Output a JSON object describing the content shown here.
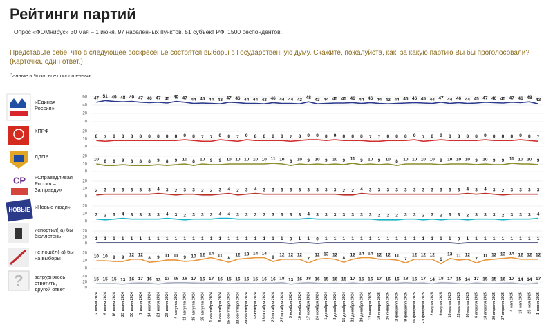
{
  "title": "Рейтинги партий",
  "subtitle": "Опрос «ФОМнибус» 30 мая – 1 июня. 97 населённых пунктов. 51 субъект РФ. 1500 респондентов.",
  "question": "Представьте себе, что в следующее воскресенье состоятся выборы в Государственную думу. Скажите, пожалуйста, как, за какую партию Вы бы проголосовали? (Карточка, один ответ.)",
  "note": "данные в % от всех опрошенных",
  "chart_data": {
    "type": "line",
    "categories": [
      "2 июня 2024",
      "9 июня 2024",
      "16 июня 2024",
      "23 июня 2024",
      "30 июня 2024",
      "7 июля 2024",
      "14 июля 2024",
      "21 июля 2024",
      "28 июля 2024",
      "4 августа 2024",
      "11 августа 2024",
      "18 августа 2024",
      "25 августа 2024",
      "1 сентября 2024",
      "8 сентября 2024",
      "15 сентября 2024",
      "22 сентября 2024",
      "29 сентября 2024",
      "6 октября 2024",
      "13 октября 2024",
      "20 октября 2024",
      "27 октября 2024",
      "3 ноября 2024",
      "10 ноября 2024",
      "17 ноября 2024",
      "24 ноября 2024",
      "1 декабря 2024",
      "8 декабря 2024",
      "15 декабря 2024",
      "22 декабря 2024",
      "29 декабря 2024",
      "12 января 2025",
      "19 января 2025",
      "26 января 2025",
      "2 февраля 2025",
      "9 февраля 2025",
      "16 февраля 2025",
      "23 февраля 2025",
      "2 марта 2025",
      "9 марта 2025",
      "16 марта 2025",
      "23 марта 2025",
      "30 марта 2025",
      "6 апреля 2025",
      "13 апреля 2025",
      "20 апреля 2025",
      "27 апреля 2025",
      "4 мая 2025",
      "18 мая 2025",
      "25 мая 2025",
      "1 июня 2025"
    ],
    "series": [
      {
        "name": "«Единая\nРоссия»",
        "color": "#2b3a8c",
        "ylim": [
          0,
          60
        ],
        "yticks": [
          0,
          20,
          40,
          60
        ],
        "values": [
          47,
          51,
          49,
          48,
          49,
          47,
          46,
          47,
          45,
          49,
          47,
          44,
          45,
          44,
          43,
          47,
          46,
          44,
          44,
          43,
          46,
          44,
          44,
          43,
          48,
          43,
          44,
          45,
          45,
          46,
          44,
          46,
          44,
          43,
          44,
          45,
          46,
          45,
          44,
          47,
          44,
          46,
          44,
          45,
          47,
          46,
          45,
          47,
          46,
          48,
          43
        ]
      },
      {
        "name": "КПРФ",
        "color": "#d32f2f",
        "ylim": [
          0,
          20
        ],
        "yticks": [
          0,
          10,
          20
        ],
        "values": [
          8,
          7,
          8,
          8,
          8,
          8,
          8,
          8,
          8,
          8,
          9,
          8,
          7,
          7,
          9,
          8,
          7,
          9,
          8,
          8,
          8,
          8,
          7,
          8,
          9,
          9,
          8,
          9,
          8,
          8,
          8,
          7,
          7,
          8,
          8,
          8,
          9,
          7,
          8,
          9,
          8,
          8,
          8,
          8,
          9,
          8,
          8,
          8,
          9,
          8,
          7
        ]
      },
      {
        "name": "ЛДПР",
        "color": "#8b8c2a",
        "ylim": [
          0,
          20
        ],
        "yticks": [
          0,
          10,
          20
        ],
        "values": [
          10,
          8,
          8,
          9,
          8,
          8,
          8,
          9,
          8,
          9,
          10,
          8,
          10,
          9,
          9,
          10,
          10,
          10,
          10,
          10,
          11,
          10,
          8,
          10,
          9,
          10,
          9,
          10,
          9,
          11,
          9,
          10,
          9,
          10,
          8,
          10,
          10,
          10,
          10,
          9,
          10,
          10,
          10,
          9,
          10,
          9,
          9,
          11,
          10,
          10,
          9
        ]
      },
      {
        "name": "«Справедливая\nРоссия –\nЗа правду»",
        "color": "#b8322a",
        "ylim": [
          0,
          20
        ],
        "yticks": [
          0,
          10,
          20
        ],
        "values": [
          2,
          3,
          3,
          3,
          3,
          3,
          3,
          4,
          3,
          2,
          3,
          3,
          2,
          2,
          3,
          4,
          2,
          3,
          4,
          3,
          3,
          3,
          3,
          3,
          3,
          3,
          3,
          3,
          2,
          2,
          4,
          3,
          3,
          3,
          3,
          3,
          3,
          3,
          3,
          3,
          3,
          3,
          4,
          3,
          4,
          3,
          2,
          3,
          3,
          3,
          3
        ]
      },
      {
        "name": "«Новые люди»",
        "color": "#19b3c6",
        "ylim": [
          0,
          20
        ],
        "yticks": [
          0,
          10,
          20
        ],
        "values": [
          3,
          2,
          3,
          4,
          3,
          3,
          3,
          3,
          4,
          3,
          2,
          3,
          3,
          3,
          4,
          4,
          3,
          3,
          3,
          3,
          3,
          3,
          3,
          3,
          4,
          3,
          3,
          3,
          3,
          3,
          3,
          3,
          2,
          2,
          2,
          3,
          3,
          2,
          3,
          2,
          3,
          3,
          2,
          3,
          3,
          3,
          2,
          3,
          3,
          3,
          4
        ]
      },
      {
        "name": "испортил(-а) бы\nбюллетень",
        "color": "#2d3466",
        "ylim": [
          0,
          20
        ],
        "yticks": [
          0,
          10,
          20
        ],
        "values": [
          1,
          1,
          1,
          1,
          1,
          1,
          1,
          1,
          1,
          1,
          1,
          1,
          1,
          1,
          1,
          1,
          1,
          1,
          1,
          1,
          1,
          1,
          0,
          1,
          1,
          0,
          1,
          1,
          1,
          1,
          1,
          1,
          1,
          1,
          1,
          1,
          1,
          1,
          1,
          1,
          1,
          0,
          1,
          1,
          1,
          1,
          1,
          1,
          1,
          1,
          1
        ]
      },
      {
        "name": "не пошёл(-а) бы\nна выборы",
        "color": "#e8963a",
        "ylim": [
          0,
          20
        ],
        "yticks": [
          0,
          10,
          20
        ],
        "values": [
          10,
          10,
          9,
          9,
          12,
          12,
          8,
          9,
          11,
          11,
          9,
          10,
          12,
          14,
          11,
          8,
          12,
          13,
          14,
          14,
          9,
          12,
          12,
          12,
          7,
          12,
          13,
          12,
          8,
          12,
          14,
          14,
          12,
          12,
          11,
          7,
          12,
          12,
          12,
          6,
          13,
          11,
          12,
          7,
          11,
          12,
          13,
          14,
          12,
          12,
          12
        ]
      },
      {
        "name": "затрудняюсь\nответить,\nдругой ответ",
        "color": "#a9afc0",
        "ylim": [
          0,
          40
        ],
        "yticks": [
          0,
          20,
          40
        ],
        "values": [
          15,
          15,
          15,
          13,
          16,
          17,
          16,
          13,
          17,
          18,
          18,
          17,
          16,
          17,
          16,
          15,
          16,
          16,
          15,
          16,
          16,
          18,
          13,
          16,
          18,
          16,
          15,
          16,
          15,
          17,
          15,
          16,
          17,
          16,
          16,
          18,
          16,
          17,
          14,
          18,
          17,
          15,
          14,
          17,
          15,
          15,
          16,
          17,
          14,
          14,
          17
        ]
      }
    ]
  }
}
